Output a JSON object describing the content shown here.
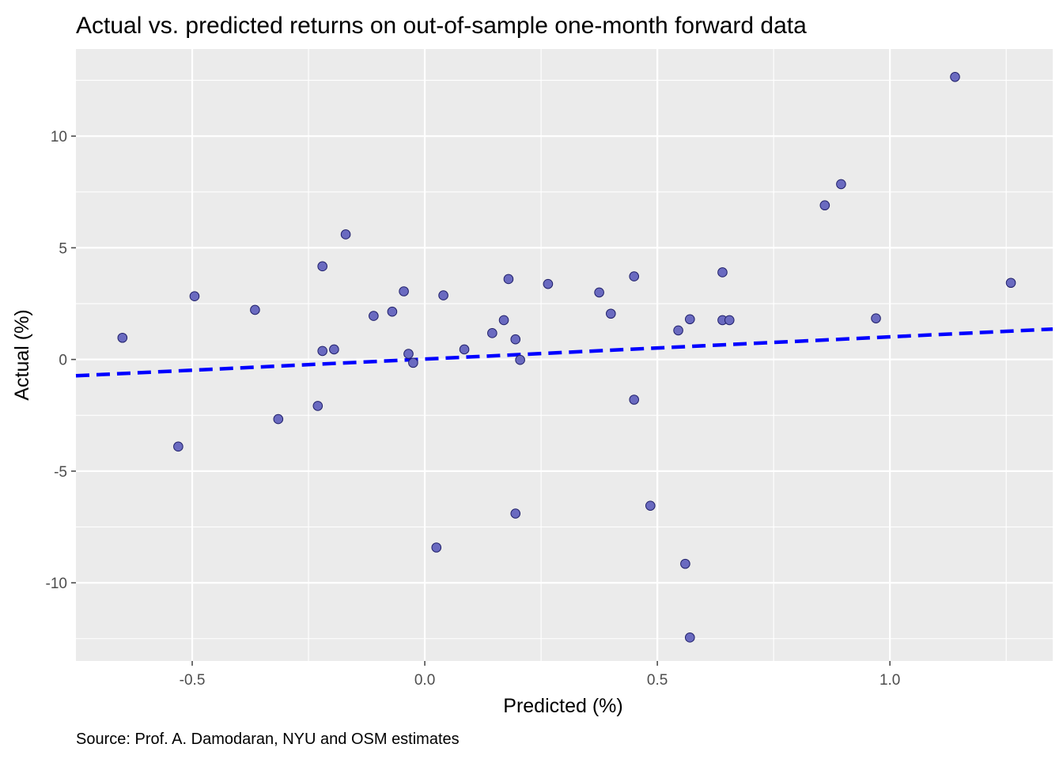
{
  "chart_data": {
    "type": "scatter",
    "title": "Actual vs. predicted returns on out-of-sample one-month forward data",
    "xlabel": "Predicted (%)",
    "ylabel": "Actual (%)",
    "caption": "Source: Prof. A. Damodaran, NYU and OSM estimates",
    "xlim": [
      -0.75,
      1.35
    ],
    "ylim": [
      -13.5,
      13.9
    ],
    "x_ticks": [
      -0.5,
      0.0,
      0.5,
      1.0
    ],
    "x_tick_labels": [
      "-0.5",
      "0.0",
      "0.5",
      "1.0"
    ],
    "y_ticks": [
      -10,
      -5,
      0,
      5,
      10
    ],
    "y_tick_labels": [
      "-10",
      "-5",
      "0",
      "5",
      "10"
    ],
    "grid": true,
    "legend": "none",
    "colors": {
      "panel": "#ebebeb",
      "grid": "#ffffff",
      "point_fill": "#6a6ac0",
      "point_stroke": "#20206a",
      "trend": "#0000ff",
      "tick": "#4d4d4d"
    },
    "points": [
      {
        "x": -0.65,
        "y": 0.97
      },
      {
        "x": -0.53,
        "y": -3.9
      },
      {
        "x": -0.495,
        "y": 2.83
      },
      {
        "x": -0.365,
        "y": 2.22
      },
      {
        "x": -0.315,
        "y": -2.67
      },
      {
        "x": -0.23,
        "y": -2.08
      },
      {
        "x": -0.22,
        "y": 4.17
      },
      {
        "x": -0.22,
        "y": 0.38
      },
      {
        "x": -0.195,
        "y": 0.45
      },
      {
        "x": -0.17,
        "y": 5.6
      },
      {
        "x": -0.11,
        "y": 1.95
      },
      {
        "x": -0.07,
        "y": 2.14
      },
      {
        "x": -0.045,
        "y": 3.05
      },
      {
        "x": -0.035,
        "y": 0.25
      },
      {
        "x": -0.025,
        "y": -0.15
      },
      {
        "x": 0.025,
        "y": -8.42
      },
      {
        "x": 0.04,
        "y": 2.87
      },
      {
        "x": 0.085,
        "y": 0.45
      },
      {
        "x": 0.145,
        "y": 1.18
      },
      {
        "x": 0.17,
        "y": 1.76
      },
      {
        "x": 0.18,
        "y": 3.6
      },
      {
        "x": 0.195,
        "y": -6.9
      },
      {
        "x": 0.195,
        "y": 0.9
      },
      {
        "x": 0.205,
        "y": -0.02
      },
      {
        "x": 0.265,
        "y": 3.38
      },
      {
        "x": 0.375,
        "y": 3.0
      },
      {
        "x": 0.4,
        "y": 2.05
      },
      {
        "x": 0.45,
        "y": 3.72
      },
      {
        "x": 0.45,
        "y": -1.8
      },
      {
        "x": 0.485,
        "y": -6.55
      },
      {
        "x": 0.545,
        "y": 1.3
      },
      {
        "x": 0.56,
        "y": -9.15
      },
      {
        "x": 0.57,
        "y": 1.8
      },
      {
        "x": 0.57,
        "y": -12.45
      },
      {
        "x": 0.64,
        "y": 3.9
      },
      {
        "x": 0.64,
        "y": 1.76
      },
      {
        "x": 0.655,
        "y": 1.76
      },
      {
        "x": 0.86,
        "y": 6.9
      },
      {
        "x": 0.895,
        "y": 7.85
      },
      {
        "x": 0.97,
        "y": 1.84
      },
      {
        "x": 1.14,
        "y": 12.65
      },
      {
        "x": 1.26,
        "y": 3.43
      }
    ],
    "trend_line": {
      "x": [
        -0.75,
        1.35
      ],
      "y": [
        -0.73,
        1.36
      ]
    }
  }
}
